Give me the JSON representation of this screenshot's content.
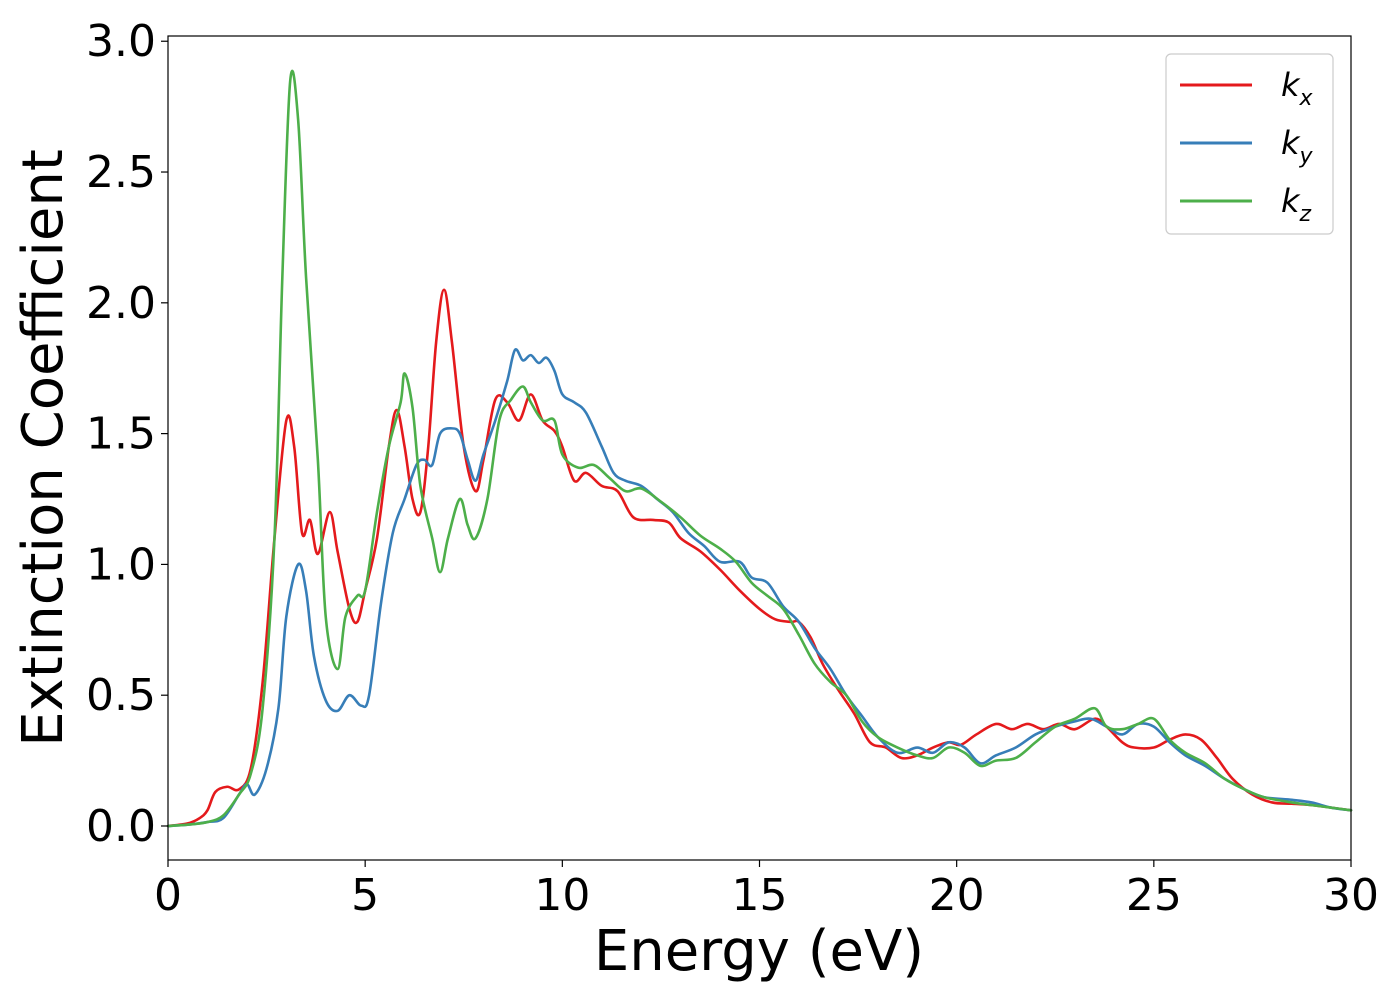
{
  "chart_data": {
    "type": "line",
    "xlabel": "Energy (eV)",
    "ylabel": "Extinction Coefficient",
    "xlim": [
      0,
      30
    ],
    "ylim": [
      -0.13,
      3.02
    ],
    "x_ticks": [
      0,
      5,
      10,
      15,
      20,
      25,
      30
    ],
    "y_ticks": [
      0.0,
      0.5,
      1.0,
      1.5,
      2.0,
      2.5,
      3.0
    ],
    "x_tick_labels": [
      "0",
      "5",
      "10",
      "15",
      "20",
      "25",
      "30"
    ],
    "y_tick_labels": [
      "0.0",
      "0.5",
      "1.0",
      "1.5",
      "2.0",
      "2.5",
      "3.0"
    ],
    "grid": false,
    "legend_position": "top-right",
    "series": [
      {
        "name": "k",
        "subscript": "x",
        "color": "#e41a1c",
        "points": [
          [
            0,
            0
          ],
          [
            0.5,
            0.01
          ],
          [
            0.8,
            0.03
          ],
          [
            1.0,
            0.06
          ],
          [
            1.2,
            0.13
          ],
          [
            1.5,
            0.15
          ],
          [
            1.8,
            0.14
          ],
          [
            2.1,
            0.22
          ],
          [
            2.4,
            0.55
          ],
          [
            2.7,
            1.1
          ],
          [
            3.0,
            1.55
          ],
          [
            3.2,
            1.45
          ],
          [
            3.4,
            1.12
          ],
          [
            3.6,
            1.17
          ],
          [
            3.8,
            1.04
          ],
          [
            4.1,
            1.2
          ],
          [
            4.3,
            1.05
          ],
          [
            4.6,
            0.83
          ],
          [
            4.8,
            0.78
          ],
          [
            5.0,
            0.9
          ],
          [
            5.3,
            1.1
          ],
          [
            5.6,
            1.45
          ],
          [
            5.8,
            1.59
          ],
          [
            6.0,
            1.45
          ],
          [
            6.2,
            1.25
          ],
          [
            6.4,
            1.2
          ],
          [
            6.6,
            1.45
          ],
          [
            6.8,
            1.85
          ],
          [
            7.0,
            2.05
          ],
          [
            7.2,
            1.85
          ],
          [
            7.5,
            1.45
          ],
          [
            7.8,
            1.28
          ],
          [
            8.0,
            1.4
          ],
          [
            8.3,
            1.63
          ],
          [
            8.6,
            1.62
          ],
          [
            8.9,
            1.55
          ],
          [
            9.2,
            1.65
          ],
          [
            9.5,
            1.55
          ],
          [
            9.8,
            1.51
          ],
          [
            10.0,
            1.45
          ],
          [
            10.3,
            1.32
          ],
          [
            10.6,
            1.35
          ],
          [
            11.0,
            1.3
          ],
          [
            11.4,
            1.28
          ],
          [
            11.8,
            1.18
          ],
          [
            12.3,
            1.17
          ],
          [
            12.7,
            1.16
          ],
          [
            13.0,
            1.1
          ],
          [
            13.5,
            1.05
          ],
          [
            14.0,
            0.98
          ],
          [
            14.5,
            0.9
          ],
          [
            15.0,
            0.83
          ],
          [
            15.4,
            0.79
          ],
          [
            15.8,
            0.78
          ],
          [
            16.0,
            0.78
          ],
          [
            16.3,
            0.72
          ],
          [
            16.6,
            0.62
          ],
          [
            17.0,
            0.52
          ],
          [
            17.4,
            0.43
          ],
          [
            17.8,
            0.32
          ],
          [
            18.2,
            0.3
          ],
          [
            18.6,
            0.26
          ],
          [
            19.0,
            0.27
          ],
          [
            19.4,
            0.3
          ],
          [
            19.8,
            0.32
          ],
          [
            20.1,
            0.31
          ],
          [
            20.5,
            0.35
          ],
          [
            21.0,
            0.39
          ],
          [
            21.4,
            0.37
          ],
          [
            21.8,
            0.39
          ],
          [
            22.2,
            0.37
          ],
          [
            22.6,
            0.39
          ],
          [
            23.0,
            0.37
          ],
          [
            23.5,
            0.41
          ],
          [
            23.8,
            0.38
          ],
          [
            24.2,
            0.32
          ],
          [
            24.5,
            0.3
          ],
          [
            25.0,
            0.3
          ],
          [
            25.4,
            0.33
          ],
          [
            25.8,
            0.35
          ],
          [
            26.2,
            0.33
          ],
          [
            26.6,
            0.26
          ],
          [
            27.0,
            0.18
          ],
          [
            27.5,
            0.12
          ],
          [
            28.0,
            0.09
          ],
          [
            28.5,
            0.085
          ],
          [
            29.0,
            0.08
          ],
          [
            29.5,
            0.07
          ],
          [
            30,
            0.06
          ]
        ]
      },
      {
        "name": "k",
        "subscript": "y",
        "color": "#377eb8",
        "points": [
          [
            0,
            0
          ],
          [
            0.5,
            0.005
          ],
          [
            1.0,
            0.015
          ],
          [
            1.4,
            0.03
          ],
          [
            1.8,
            0.12
          ],
          [
            2.0,
            0.16
          ],
          [
            2.2,
            0.12
          ],
          [
            2.5,
            0.22
          ],
          [
            2.8,
            0.45
          ],
          [
            3.0,
            0.8
          ],
          [
            3.3,
            1.0
          ],
          [
            3.5,
            0.9
          ],
          [
            3.7,
            0.65
          ],
          [
            4.0,
            0.48
          ],
          [
            4.3,
            0.44
          ],
          [
            4.6,
            0.5
          ],
          [
            4.9,
            0.46
          ],
          [
            5.1,
            0.5
          ],
          [
            5.4,
            0.85
          ],
          [
            5.7,
            1.12
          ],
          [
            6.0,
            1.25
          ],
          [
            6.3,
            1.38
          ],
          [
            6.5,
            1.4
          ],
          [
            6.7,
            1.38
          ],
          [
            6.9,
            1.5
          ],
          [
            7.2,
            1.52
          ],
          [
            7.4,
            1.5
          ],
          [
            7.6,
            1.4
          ],
          [
            7.8,
            1.32
          ],
          [
            8.0,
            1.42
          ],
          [
            8.3,
            1.55
          ],
          [
            8.6,
            1.7
          ],
          [
            8.8,
            1.82
          ],
          [
            9.0,
            1.78
          ],
          [
            9.2,
            1.8
          ],
          [
            9.4,
            1.77
          ],
          [
            9.6,
            1.79
          ],
          [
            9.8,
            1.74
          ],
          [
            10.0,
            1.65
          ],
          [
            10.3,
            1.62
          ],
          [
            10.6,
            1.58
          ],
          [
            11.0,
            1.45
          ],
          [
            11.3,
            1.35
          ],
          [
            11.6,
            1.32
          ],
          [
            12.0,
            1.3
          ],
          [
            12.4,
            1.25
          ],
          [
            12.8,
            1.2
          ],
          [
            13.2,
            1.12
          ],
          [
            13.6,
            1.07
          ],
          [
            14.0,
            1.01
          ],
          [
            14.5,
            1.01
          ],
          [
            14.8,
            0.95
          ],
          [
            15.2,
            0.93
          ],
          [
            15.6,
            0.84
          ],
          [
            16.0,
            0.78
          ],
          [
            16.4,
            0.68
          ],
          [
            16.8,
            0.6
          ],
          [
            17.2,
            0.5
          ],
          [
            17.6,
            0.42
          ],
          [
            18.0,
            0.34
          ],
          [
            18.5,
            0.28
          ],
          [
            19.0,
            0.3
          ],
          [
            19.4,
            0.28
          ],
          [
            19.8,
            0.32
          ],
          [
            20.2,
            0.3
          ],
          [
            20.6,
            0.24
          ],
          [
            21.0,
            0.27
          ],
          [
            21.5,
            0.3
          ],
          [
            22.0,
            0.35
          ],
          [
            22.5,
            0.38
          ],
          [
            23.0,
            0.4
          ],
          [
            23.4,
            0.41
          ],
          [
            23.8,
            0.38
          ],
          [
            24.2,
            0.35
          ],
          [
            24.6,
            0.39
          ],
          [
            25.0,
            0.38
          ],
          [
            25.4,
            0.32
          ],
          [
            25.8,
            0.27
          ],
          [
            26.3,
            0.23
          ],
          [
            26.8,
            0.18
          ],
          [
            27.3,
            0.14
          ],
          [
            27.8,
            0.11
          ],
          [
            28.5,
            0.1
          ],
          [
            29.0,
            0.09
          ],
          [
            29.5,
            0.07
          ],
          [
            30,
            0.06
          ]
        ]
      },
      {
        "name": "k",
        "subscript": "z",
        "color": "#4daf4a",
        "points": [
          [
            0,
            0
          ],
          [
            0.5,
            0.005
          ],
          [
            1.0,
            0.015
          ],
          [
            1.4,
            0.04
          ],
          [
            1.8,
            0.12
          ],
          [
            2.1,
            0.2
          ],
          [
            2.4,
            0.45
          ],
          [
            2.7,
            1.1
          ],
          [
            2.9,
            2.1
          ],
          [
            3.1,
            2.85
          ],
          [
            3.3,
            2.7
          ],
          [
            3.5,
            2.1
          ],
          [
            3.8,
            1.4
          ],
          [
            4.0,
            0.8
          ],
          [
            4.3,
            0.6
          ],
          [
            4.5,
            0.8
          ],
          [
            4.8,
            0.88
          ],
          [
            5.0,
            0.9
          ],
          [
            5.3,
            1.2
          ],
          [
            5.6,
            1.45
          ],
          [
            5.9,
            1.62
          ],
          [
            6.0,
            1.73
          ],
          [
            6.2,
            1.6
          ],
          [
            6.4,
            1.3
          ],
          [
            6.7,
            1.1
          ],
          [
            6.9,
            0.97
          ],
          [
            7.1,
            1.1
          ],
          [
            7.4,
            1.25
          ],
          [
            7.6,
            1.15
          ],
          [
            7.8,
            1.1
          ],
          [
            8.1,
            1.25
          ],
          [
            8.4,
            1.55
          ],
          [
            8.7,
            1.63
          ],
          [
            9.0,
            1.68
          ],
          [
            9.2,
            1.62
          ],
          [
            9.5,
            1.55
          ],
          [
            9.8,
            1.55
          ],
          [
            10.0,
            1.42
          ],
          [
            10.4,
            1.37
          ],
          [
            10.8,
            1.38
          ],
          [
            11.2,
            1.33
          ],
          [
            11.6,
            1.28
          ],
          [
            12.0,
            1.29
          ],
          [
            12.5,
            1.24
          ],
          [
            13.0,
            1.18
          ],
          [
            13.5,
            1.11
          ],
          [
            14.0,
            1.06
          ],
          [
            14.4,
            1.01
          ],
          [
            14.8,
            0.93
          ],
          [
            15.2,
            0.88
          ],
          [
            15.6,
            0.83
          ],
          [
            16.0,
            0.73
          ],
          [
            16.4,
            0.62
          ],
          [
            16.8,
            0.55
          ],
          [
            17.2,
            0.5
          ],
          [
            17.6,
            0.4
          ],
          [
            18.0,
            0.34
          ],
          [
            18.5,
            0.3
          ],
          [
            19.0,
            0.27
          ],
          [
            19.4,
            0.26
          ],
          [
            19.8,
            0.3
          ],
          [
            20.2,
            0.28
          ],
          [
            20.6,
            0.23
          ],
          [
            21.0,
            0.25
          ],
          [
            21.5,
            0.26
          ],
          [
            22.0,
            0.32
          ],
          [
            22.5,
            0.38
          ],
          [
            23.0,
            0.41
          ],
          [
            23.5,
            0.45
          ],
          [
            23.8,
            0.38
          ],
          [
            24.2,
            0.37
          ],
          [
            24.6,
            0.39
          ],
          [
            25.0,
            0.41
          ],
          [
            25.4,
            0.33
          ],
          [
            25.8,
            0.28
          ],
          [
            26.3,
            0.24
          ],
          [
            26.8,
            0.18
          ],
          [
            27.3,
            0.14
          ],
          [
            27.8,
            0.11
          ],
          [
            28.5,
            0.09
          ],
          [
            29.0,
            0.08
          ],
          [
            29.5,
            0.07
          ],
          [
            30,
            0.06
          ]
        ]
      }
    ]
  }
}
